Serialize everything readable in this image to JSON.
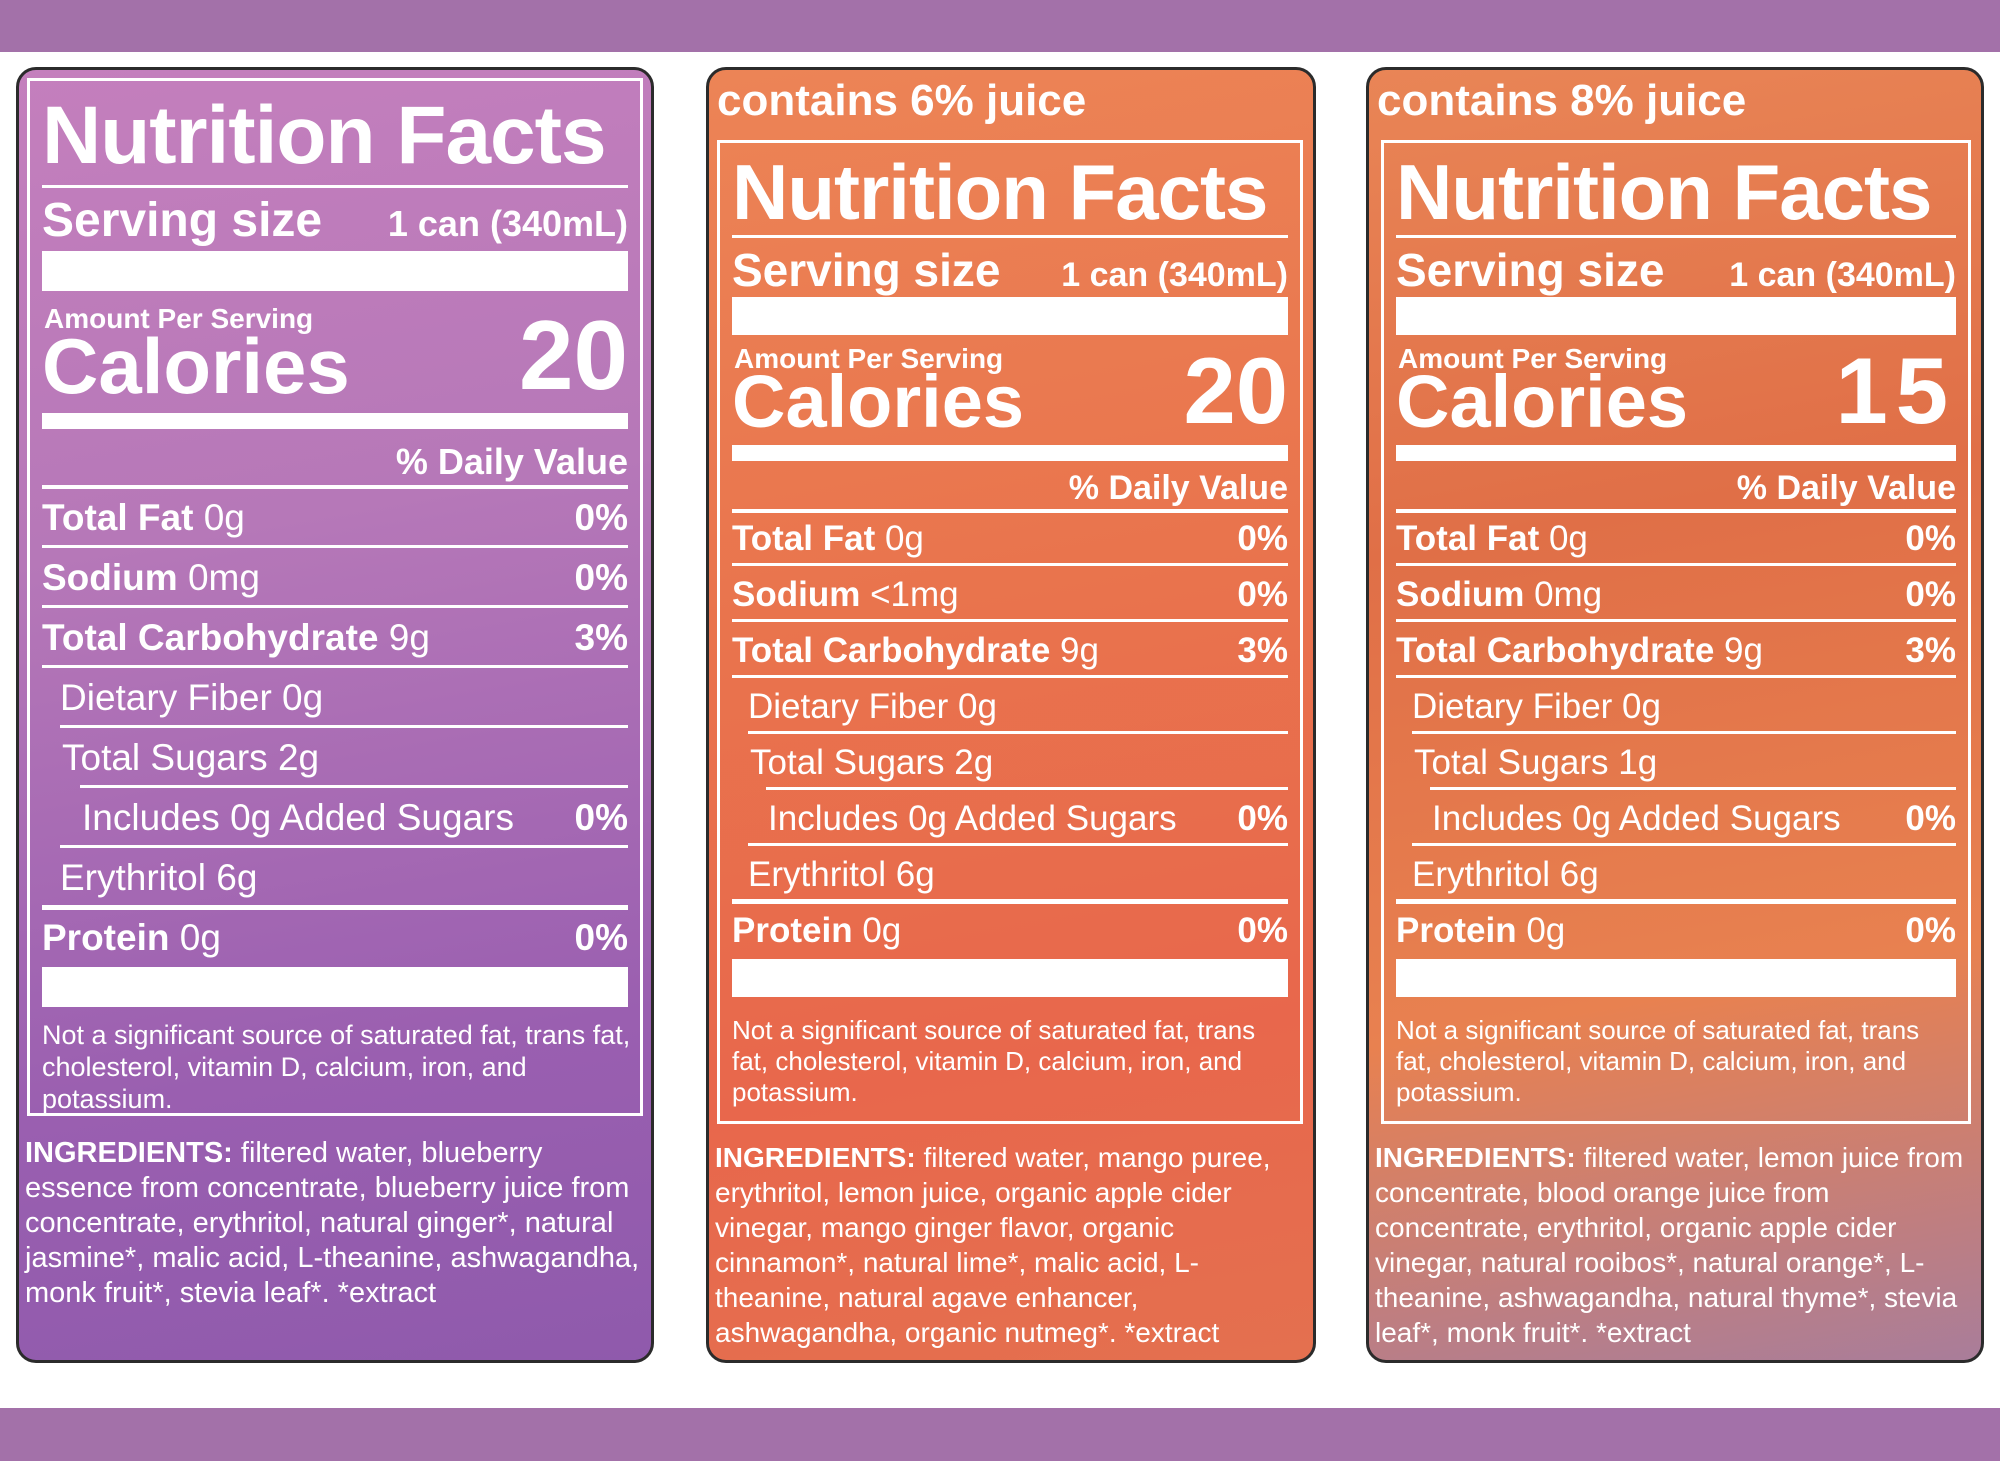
{
  "labels": [
    {
      "juice": "",
      "title": "Nutrition Facts",
      "serving_label": "Serving size",
      "serving_value": "1 can (340mL)",
      "amount_per_serving": "Amount Per Serving",
      "calories_label": "Calories",
      "calories_value": "20",
      "daily_value_header": "% Daily Value",
      "total_fat": {
        "name": "Total Fat",
        "amount": "0g",
        "pct": "0%"
      },
      "sodium": {
        "name": "Sodium",
        "amount": "0mg",
        "pct": "0%"
      },
      "total_carb": {
        "name": "Total Carbohydrate",
        "amount": "9g",
        "pct": "3%"
      },
      "dietary_fiber": "Dietary Fiber 0g",
      "total_sugars": "Total Sugars 2g",
      "added_sugars": {
        "text": "Includes 0g Added Sugars",
        "pct": "0%"
      },
      "erythritol": "Erythritol 6g",
      "protein": {
        "name": "Protein",
        "amount": "0g",
        "pct": "0%"
      },
      "footnote": "Not a significant source of saturated fat, trans fat, cholesterol, vitamin D, calcium, iron, and potassium.",
      "ingredients_label": "INGREDIENTS:",
      "ingredients_text": "filtered water, blueberry essence from concentrate, blueberry juice from concentrate, erythritol, natural ginger*, natural jasmine*, malic acid, L-theanine, ashwagandha, monk fruit*, stevia leaf*. *extract"
    },
    {
      "juice": "contains 6% juice",
      "title": "Nutrition Facts",
      "serving_label": "Serving size",
      "serving_value": "1 can (340mL)",
      "amount_per_serving": "Amount Per Serving",
      "calories_label": "Calories",
      "calories_value": "20",
      "daily_value_header": "% Daily Value",
      "total_fat": {
        "name": "Total Fat",
        "amount": "0g",
        "pct": "0%"
      },
      "sodium": {
        "name": "Sodium",
        "amount": "<1mg",
        "pct": "0%"
      },
      "total_carb": {
        "name": "Total Carbohydrate",
        "amount": "9g",
        "pct": "3%"
      },
      "dietary_fiber": "Dietary Fiber 0g",
      "total_sugars": "Total Sugars 2g",
      "added_sugars": {
        "text": "Includes 0g Added Sugars",
        "pct": "0%"
      },
      "erythritol": "Erythritol 6g",
      "protein": {
        "name": "Protein",
        "amount": "0g",
        "pct": "0%"
      },
      "footnote": "Not a significant source of saturated fat, trans fat, cholesterol, vitamin D, calcium, iron, and potassium.",
      "ingredients_label": "INGREDIENTS:",
      "ingredients_text": "filtered water, mango puree, erythritol, lemon juice, organic apple cider vinegar, mango ginger flavor, organic cinnamon*, natural lime*, malic acid, L-theanine, natural agave enhancer, ashwagandha, organic nutmeg*. *extract"
    },
    {
      "juice": "contains 8% juice",
      "title": "Nutrition Facts",
      "serving_label": "Serving size",
      "serving_value": "1 can (340mL)",
      "amount_per_serving": "Amount Per Serving",
      "calories_label": "Calories",
      "calories_value": "15",
      "daily_value_header": "% Daily Value",
      "total_fat": {
        "name": "Total Fat",
        "amount": "0g",
        "pct": "0%"
      },
      "sodium": {
        "name": "Sodium",
        "amount": "0mg",
        "pct": "0%"
      },
      "total_carb": {
        "name": "Total Carbohydrate",
        "amount": "9g",
        "pct": "3%"
      },
      "dietary_fiber": "Dietary Fiber 0g",
      "total_sugars": "Total Sugars 1g",
      "added_sugars": {
        "text": "Includes 0g Added Sugars",
        "pct": "0%"
      },
      "erythritol": "Erythritol 6g",
      "protein": {
        "name": "Protein",
        "amount": "0g",
        "pct": "0%"
      },
      "footnote": "Not a significant source of saturated fat, trans fat, cholesterol, vitamin D, calcium, iron, and potassium.",
      "ingredients_label": "INGREDIENTS:",
      "ingredients_text": "filtered water, lemon juice from concentrate, blood orange juice from concentrate, erythritol, organic apple cider vinegar, natural rooibos*, natural orange*, L-theanine, ashwagandha, natural thyme*, stevia leaf*, monk fruit*. *extract"
    }
  ]
}
